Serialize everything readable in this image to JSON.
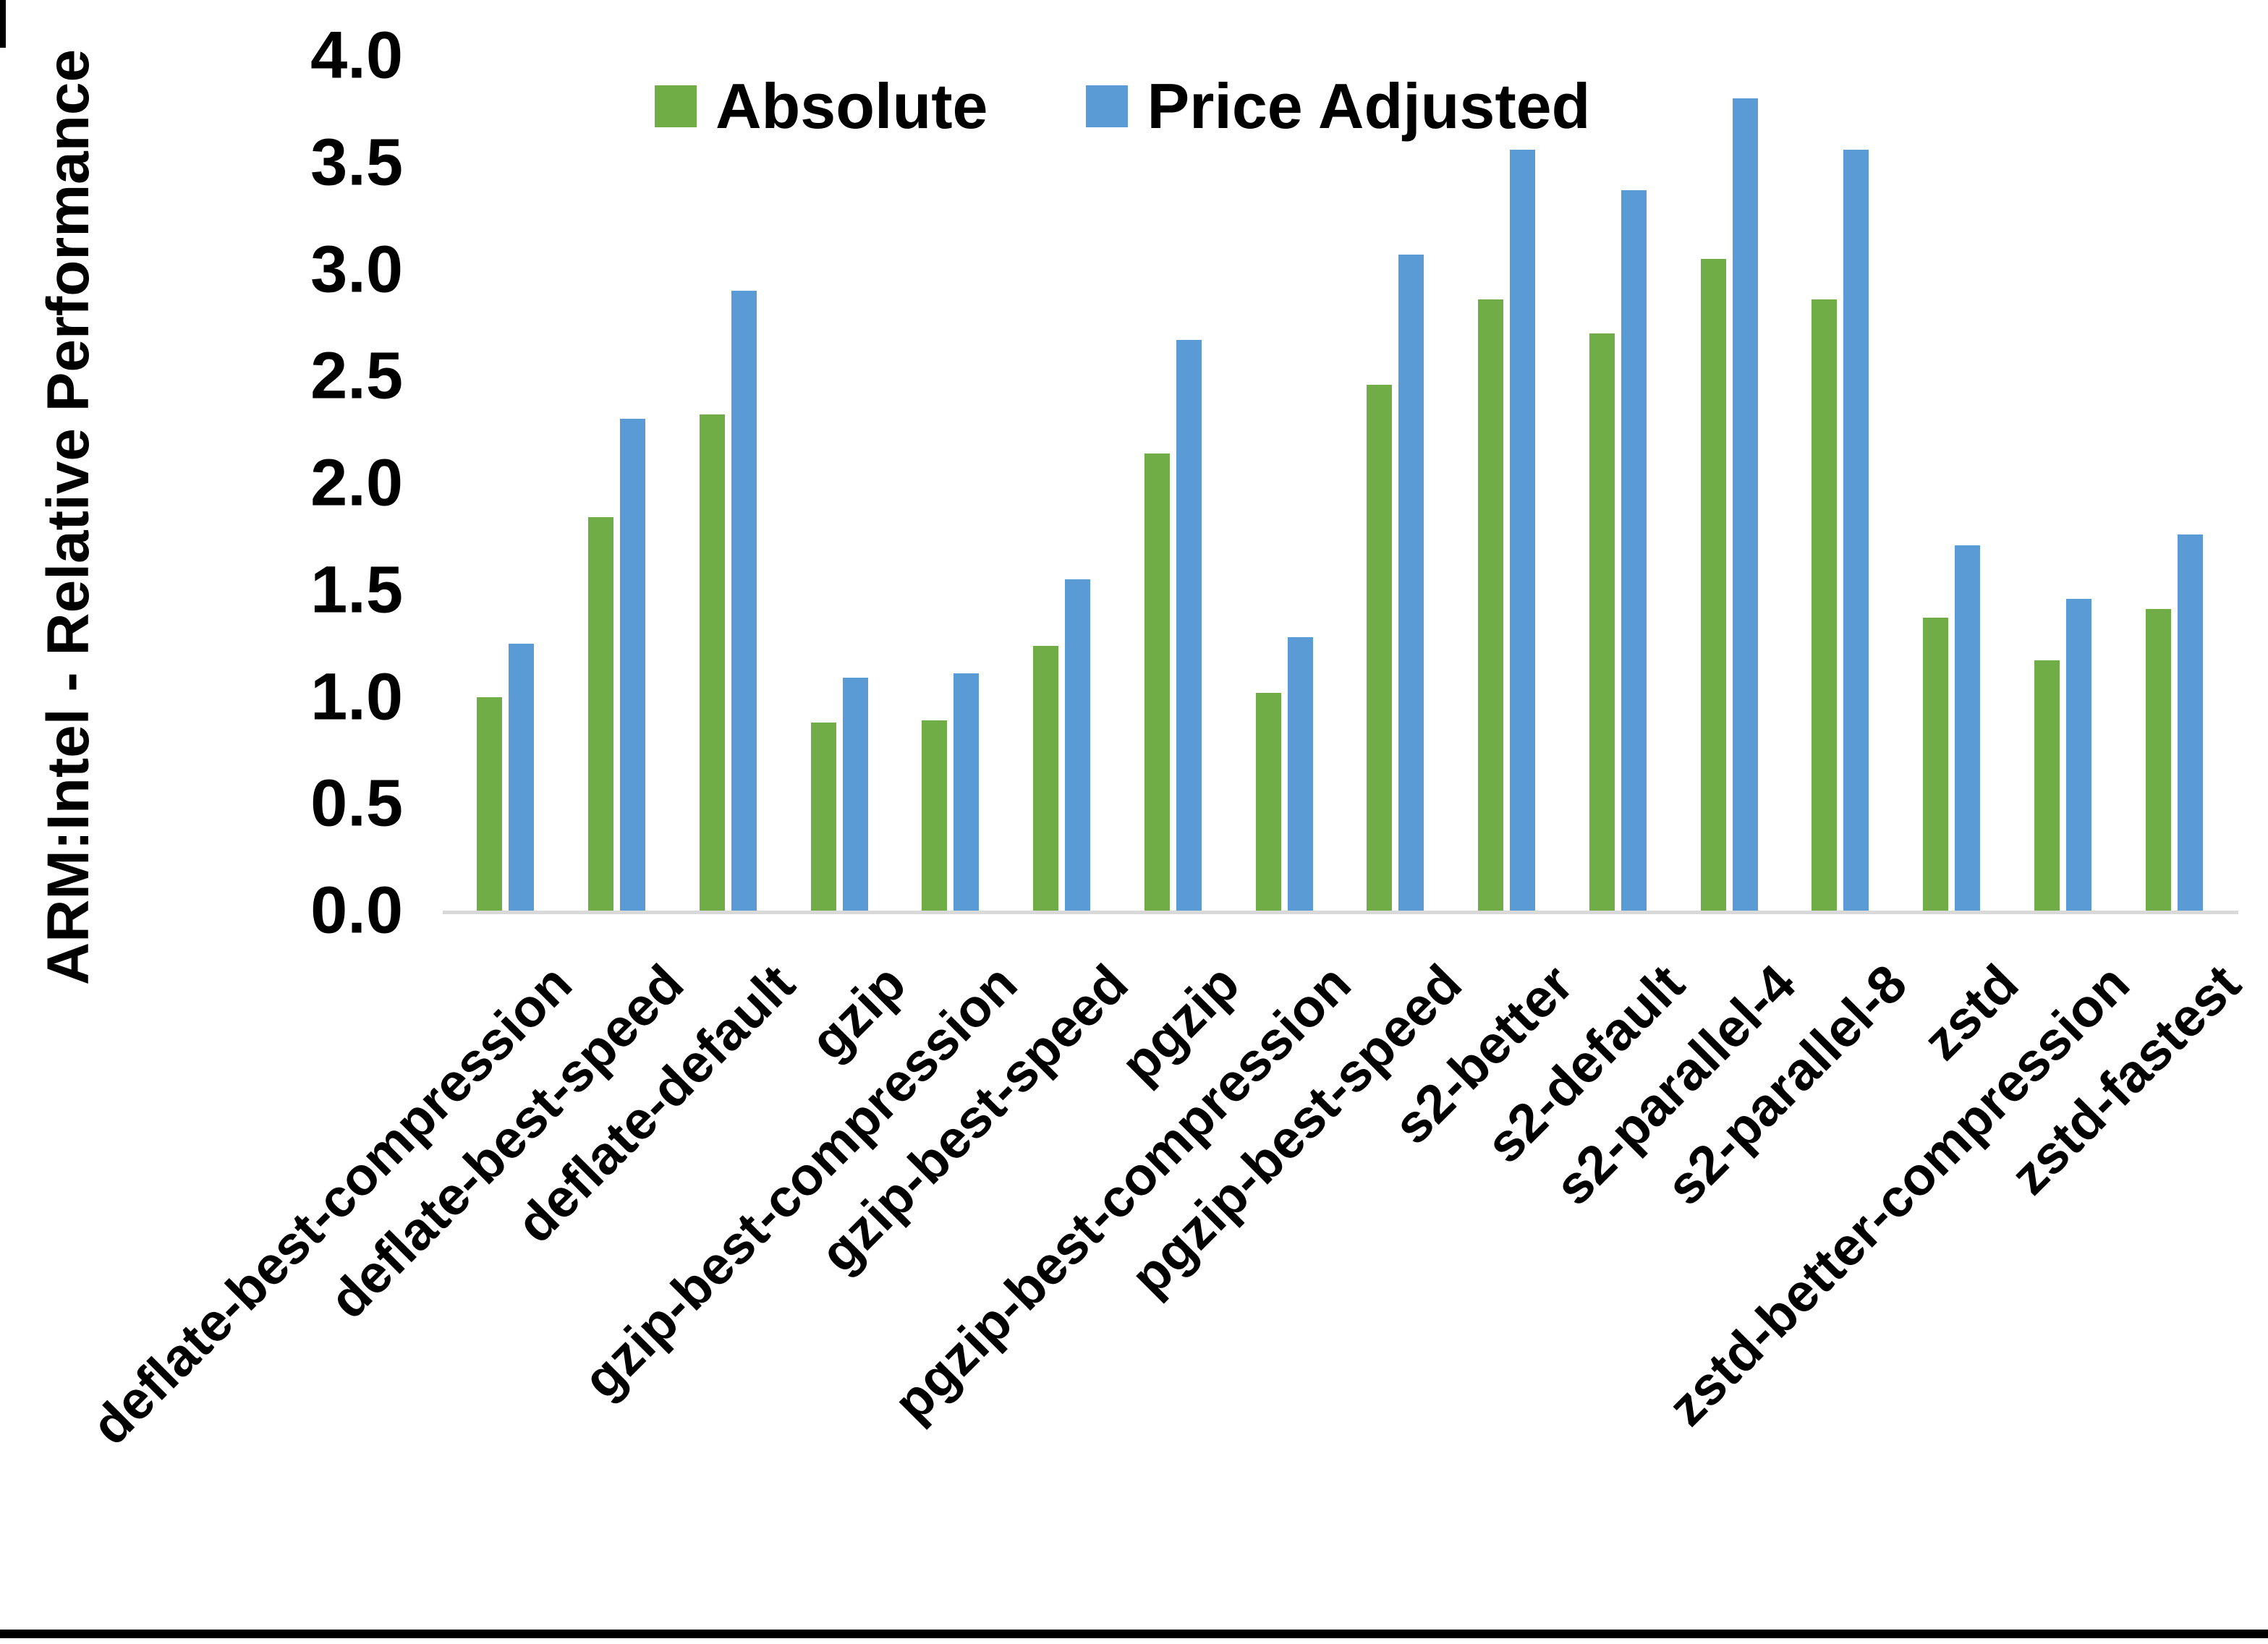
{
  "y_axis": {
    "title": "ARM:Intel - Relative Performance",
    "tick_labels": [
      "4.0",
      "3.5",
      "3.0",
      "2.5",
      "2.0",
      "1.5",
      "1.0",
      "0.5",
      "0.0"
    ]
  },
  "legend": {
    "items": [
      {
        "label": "Absolute",
        "color": "#70AD47"
      },
      {
        "label": "Price Adjusted",
        "color": "#5B9BD5"
      }
    ]
  },
  "colors": {
    "absolute_green": "#70AD47",
    "price_adjusted_blue": "#5B9BD5",
    "axis_line_gray": "#d9d9d9",
    "text_black": "#000000"
  },
  "chart_data": {
    "type": "bar",
    "title": "",
    "xlabel": "",
    "ylabel": "ARM:Intel - Relative Performance",
    "ylim": [
      0.0,
      4.0
    ],
    "ytick_step": 0.5,
    "grid": false,
    "legend_position": "top-center-inside",
    "categories": [
      "deflate-best-compression",
      "deflate-best-speed",
      "deflate-default",
      "gzip",
      "gzip-best-compression",
      "gzip-best-speed",
      "pgzip",
      "pgzip-best-compression",
      "pgzip-best-speed",
      "s2-better",
      "s2-default",
      "s2-parallel-4",
      "s2-parallel-8",
      "zstd",
      "zstd-better-compression",
      "zstd-fastest"
    ],
    "series": [
      {
        "name": "Absolute",
        "color": "#70AD47",
        "values": [
          1.0,
          1.84,
          2.32,
          0.88,
          0.89,
          1.24,
          2.14,
          1.02,
          2.46,
          2.86,
          2.7,
          3.05,
          2.86,
          1.37,
          1.17,
          1.41
        ]
      },
      {
        "name": "Price Adjusted",
        "color": "#5B9BD5",
        "values": [
          1.25,
          2.3,
          2.9,
          1.09,
          1.11,
          1.55,
          2.67,
          1.28,
          3.07,
          3.56,
          3.37,
          3.8,
          3.56,
          1.71,
          1.46,
          1.76
        ]
      }
    ]
  }
}
